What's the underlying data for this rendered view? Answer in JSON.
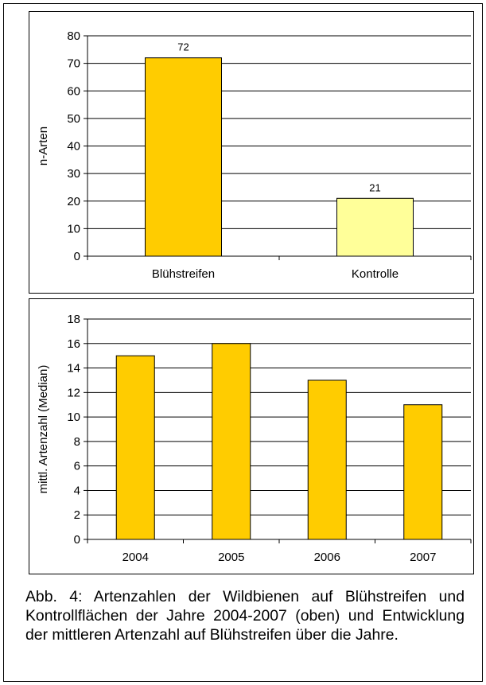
{
  "caption": "Abb. 4: Artenzahlen der Wildbienen auf Blühstreifen und Kontrollflächen der Jahre 2004-2007 (oben) und Entwicklung der mittleren Artenzahl auf Blühstreifen über die Jahre.",
  "colors": {
    "bar_primary": "#ffcc00",
    "bar_light": "#ffff99",
    "bar_stroke": "#000000",
    "grid": "#000000"
  },
  "chart_data": [
    {
      "type": "bar",
      "title": "",
      "xlabel": "",
      "ylabel": "n-Arten",
      "categories": [
        "Blühstreifen",
        "Kontrolle"
      ],
      "values": [
        72,
        21
      ],
      "data_labels": [
        "72",
        "21"
      ],
      "bar_colors": [
        "#ffcc00",
        "#ffff99"
      ],
      "ylim": [
        0,
        80
      ],
      "yticks": [
        0,
        10,
        20,
        30,
        40,
        50,
        60,
        70,
        80
      ],
      "grid": true,
      "legend": "none"
    },
    {
      "type": "bar",
      "title": "",
      "xlabel": "",
      "ylabel": "mittl. Artenzahl (Median)",
      "categories": [
        "2004",
        "2005",
        "2006",
        "2007"
      ],
      "values": [
        15,
        16,
        13,
        11
      ],
      "bar_colors": [
        "#ffcc00",
        "#ffcc00",
        "#ffcc00",
        "#ffcc00"
      ],
      "ylim": [
        0,
        18
      ],
      "yticks": [
        0,
        2,
        4,
        6,
        8,
        10,
        12,
        14,
        16,
        18
      ],
      "grid": true,
      "legend": "none"
    }
  ]
}
